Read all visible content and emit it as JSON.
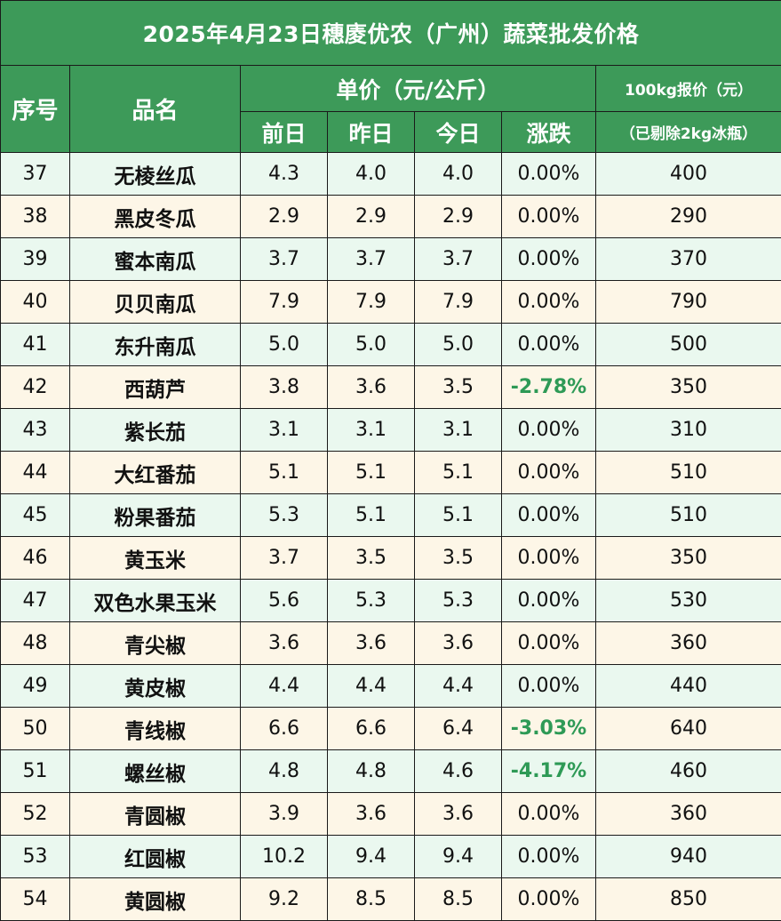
{
  "title": "2025年4月23日穗庱优农（广州）蔬菜批发价格",
  "headers": {
    "index": "序号",
    "name": "品名",
    "unit_price": "单价（元/公斤）",
    "prev_day": "前日",
    "yesterday": "昨日",
    "today": "今日",
    "change": "涨跌",
    "quote_100kg": "100kg报价（元）",
    "quote_note": "（已剔除2kg冰瓶）"
  },
  "rows": [
    {
      "idx": "37",
      "name": "无棱丝瓜",
      "prev": "4.3",
      "yest": "4.0",
      "today": "4.0",
      "change": "0.00%",
      "quote": "400",
      "neg": false
    },
    {
      "idx": "38",
      "name": "黑皮冬瓜",
      "prev": "2.9",
      "yest": "2.9",
      "today": "2.9",
      "change": "0.00%",
      "quote": "290",
      "neg": false
    },
    {
      "idx": "39",
      "name": "蜜本南瓜",
      "prev": "3.7",
      "yest": "3.7",
      "today": "3.7",
      "change": "0.00%",
      "quote": "370",
      "neg": false
    },
    {
      "idx": "40",
      "name": "贝贝南瓜",
      "prev": "7.9",
      "yest": "7.9",
      "today": "7.9",
      "change": "0.00%",
      "quote": "790",
      "neg": false
    },
    {
      "idx": "41",
      "name": "东升南瓜",
      "prev": "5.0",
      "yest": "5.0",
      "today": "5.0",
      "change": "0.00%",
      "quote": "500",
      "neg": false
    },
    {
      "idx": "42",
      "name": "西葫芦",
      "prev": "3.8",
      "yest": "3.6",
      "today": "3.5",
      "change": "-2.78%",
      "quote": "350",
      "neg": true
    },
    {
      "idx": "43",
      "name": "紫长茄",
      "prev": "3.1",
      "yest": "3.1",
      "today": "3.1",
      "change": "0.00%",
      "quote": "310",
      "neg": false
    },
    {
      "idx": "44",
      "name": "大红番茄",
      "prev": "5.1",
      "yest": "5.1",
      "today": "5.1",
      "change": "0.00%",
      "quote": "510",
      "neg": false
    },
    {
      "idx": "45",
      "name": "粉果番茄",
      "prev": "5.3",
      "yest": "5.1",
      "today": "5.1",
      "change": "0.00%",
      "quote": "510",
      "neg": false
    },
    {
      "idx": "46",
      "name": "黄玉米",
      "prev": "3.7",
      "yest": "3.5",
      "today": "3.5",
      "change": "0.00%",
      "quote": "350",
      "neg": false
    },
    {
      "idx": "47",
      "name": "双色水果玉米",
      "prev": "5.6",
      "yest": "5.3",
      "today": "5.3",
      "change": "0.00%",
      "quote": "530",
      "neg": false
    },
    {
      "idx": "48",
      "name": "青尖椒",
      "prev": "3.6",
      "yest": "3.6",
      "today": "3.6",
      "change": "0.00%",
      "quote": "360",
      "neg": false
    },
    {
      "idx": "49",
      "name": "黄皮椒",
      "prev": "4.4",
      "yest": "4.4",
      "today": "4.4",
      "change": "0.00%",
      "quote": "440",
      "neg": false
    },
    {
      "idx": "50",
      "name": "青线椒",
      "prev": "6.6",
      "yest": "6.6",
      "today": "6.4",
      "change": "-3.03%",
      "quote": "640",
      "neg": true
    },
    {
      "idx": "51",
      "name": "螺丝椒",
      "prev": "4.8",
      "yest": "4.8",
      "today": "4.6",
      "change": "-4.17%",
      "quote": "460",
      "neg": true
    },
    {
      "idx": "52",
      "name": "青圆椒",
      "prev": "3.9",
      "yest": "3.6",
      "today": "3.6",
      "change": "0.00%",
      "quote": "360",
      "neg": false
    },
    {
      "idx": "53",
      "name": "红圆椒",
      "prev": "10.2",
      "yest": "9.4",
      "today": "9.4",
      "change": "0.00%",
      "quote": "940",
      "neg": false
    },
    {
      "idx": "54",
      "name": "黄圆椒",
      "prev": "9.2",
      "yest": "8.5",
      "today": "8.5",
      "change": "0.00%",
      "quote": "850",
      "neg": false
    }
  ],
  "colors": {
    "header_green": "#3d9a59",
    "row_green": "#eaf8ef",
    "row_cream": "#fdf6e7",
    "negative_text": "#2e9a56"
  }
}
